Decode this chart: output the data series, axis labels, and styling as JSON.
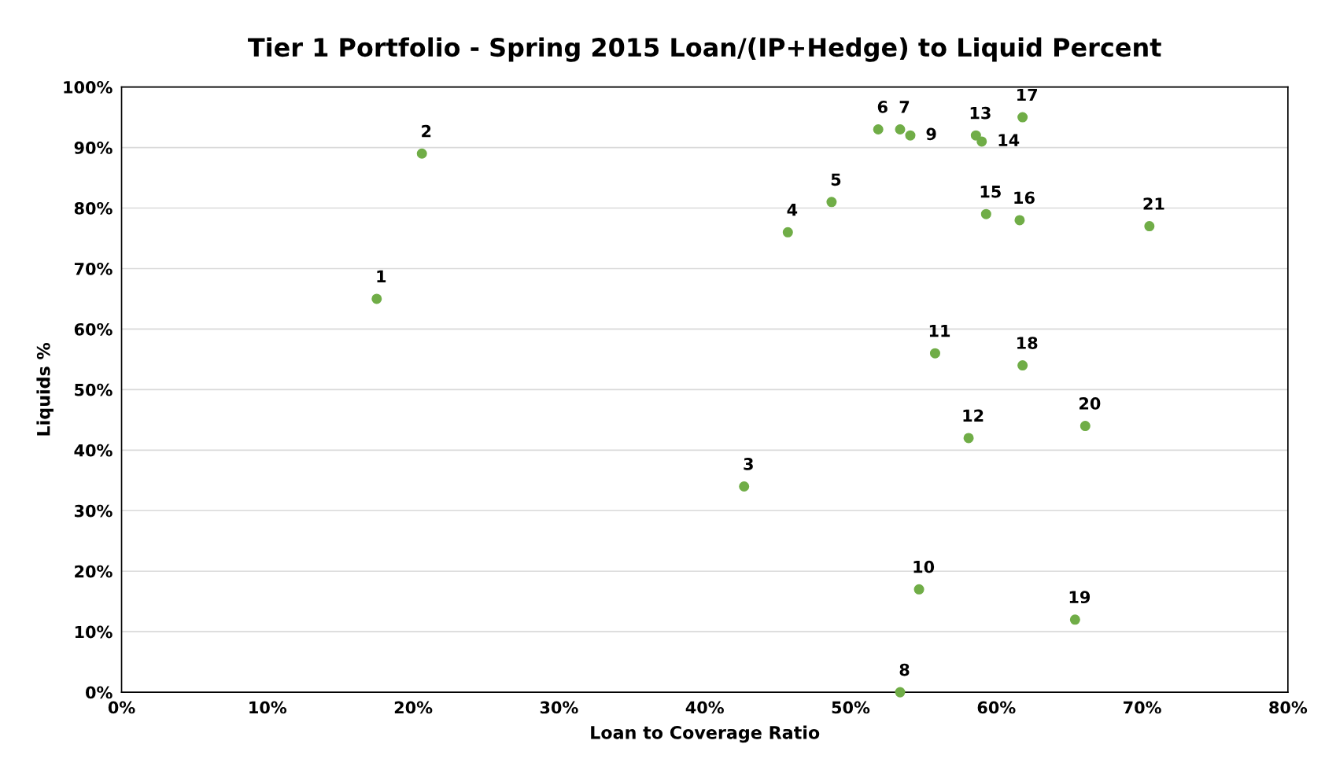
{
  "chart_data": {
    "type": "scatter",
    "title": "Tier 1 Portfolio - Spring 2015 Loan/(IP+Hedge) to Liquid Percent",
    "xlabel": "Loan to Coverage Ratio",
    "ylabel": "Liquids %",
    "x": [
      17.5,
      20.6,
      42.7,
      45.7,
      48.7,
      51.9,
      53.4,
      53.4,
      54.1,
      54.7,
      55.8,
      58.1,
      58.6,
      59.0,
      59.3,
      61.6,
      61.8,
      61.8,
      65.4,
      66.1,
      70.5
    ],
    "series": [
      {
        "color": "#70ad47",
        "values": [
          65,
          89,
          34,
          76,
          81,
          93,
          93,
          0,
          92,
          17,
          56,
          42,
          92,
          91,
          79,
          78,
          95,
          54,
          12,
          44,
          77
        ]
      }
    ],
    "annotations": [
      {
        "text": "1",
        "x": 17.5,
        "y": 65
      },
      {
        "text": "2",
        "x": 20.6,
        "y": 89
      },
      {
        "text": "3",
        "x": 42.7,
        "y": 34
      },
      {
        "text": "4",
        "x": 45.7,
        "y": 76
      },
      {
        "text": "5",
        "x": 48.7,
        "y": 81
      },
      {
        "text": "6",
        "x": 51.9,
        "y": 93
      },
      {
        "text": "7",
        "x": 53.4,
        "y": 93
      },
      {
        "text": "8",
        "x": 53.4,
        "y": 0
      },
      {
        "text": "9",
        "x": 54.1,
        "y": 92
      },
      {
        "text": "10",
        "x": 54.7,
        "y": 17
      },
      {
        "text": "11",
        "x": 55.8,
        "y": 56
      },
      {
        "text": "12",
        "x": 58.1,
        "y": 42
      },
      {
        "text": "13",
        "x": 58.6,
        "y": 92
      },
      {
        "text": "14",
        "x": 59.0,
        "y": 91
      },
      {
        "text": "15",
        "x": 59.3,
        "y": 79
      },
      {
        "text": "16",
        "x": 61.6,
        "y": 78
      },
      {
        "text": "17",
        "x": 61.8,
        "y": 95
      },
      {
        "text": "18",
        "x": 61.8,
        "y": 54
      },
      {
        "text": "19",
        "x": 65.4,
        "y": 12
      },
      {
        "text": "20",
        "x": 66.1,
        "y": 44
      },
      {
        "text": "21",
        "x": 70.5,
        "y": 77
      }
    ],
    "xlim": [
      0,
      80
    ],
    "ylim": [
      0,
      100
    ],
    "xticks": [
      {
        "value": 0,
        "label": "0%"
      },
      {
        "value": 10,
        "label": "10%"
      },
      {
        "value": 20,
        "label": "20%"
      },
      {
        "value": 30,
        "label": "30%"
      },
      {
        "value": 40,
        "label": "40%"
      },
      {
        "value": 50,
        "label": "50%"
      },
      {
        "value": 60,
        "label": "60%"
      },
      {
        "value": 70,
        "label": "70%"
      },
      {
        "value": 80,
        "label": "80%"
      }
    ],
    "yticks": [
      {
        "value": 0,
        "label": "0%"
      },
      {
        "value": 10,
        "label": "10%"
      },
      {
        "value": 20,
        "label": "20%"
      },
      {
        "value": 30,
        "label": "30%"
      },
      {
        "value": 40,
        "label": "40%"
      },
      {
        "value": 50,
        "label": "50%"
      },
      {
        "value": 60,
        "label": "60%"
      },
      {
        "value": 70,
        "label": "70%"
      },
      {
        "value": 80,
        "label": "80%"
      },
      {
        "value": 90,
        "label": "90%"
      },
      {
        "value": 100,
        "label": "100%"
      }
    ],
    "grid": "y",
    "marker": "circle"
  }
}
